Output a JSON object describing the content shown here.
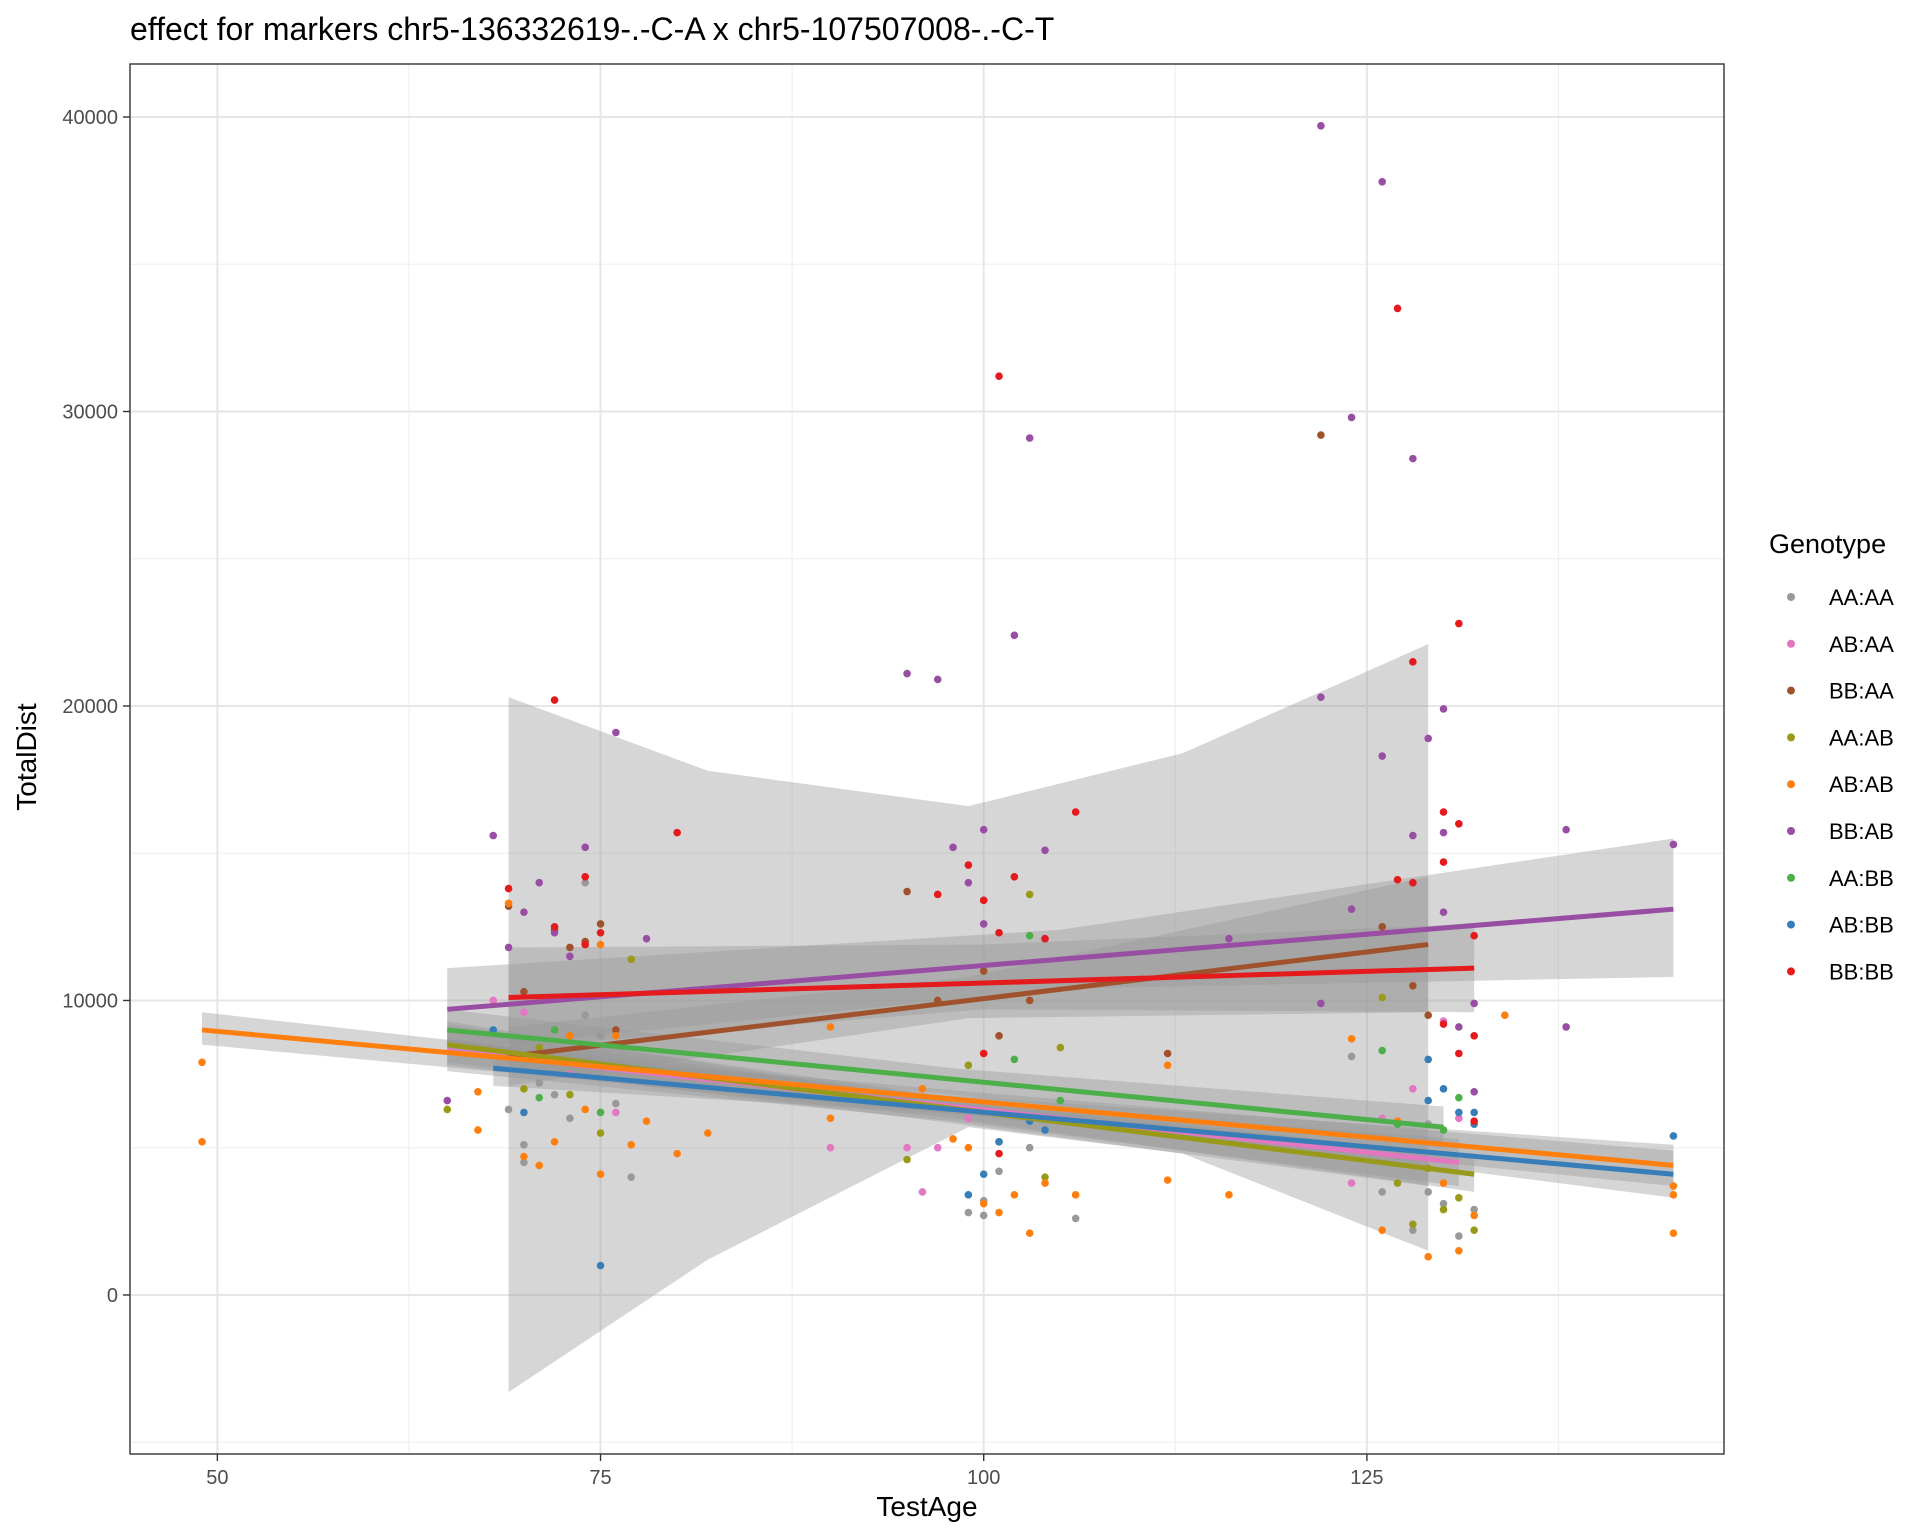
{
  "chart_data": {
    "type": "scatter",
    "title": "effect for markers chr5-136332619-.-C-A x chr5-107507008-.-C-T",
    "xlabel": "TestAge",
    "ylabel": "TotalDist",
    "xlim": [
      44.3,
      148.3
    ],
    "ylim": [
      -5400,
      41800
    ],
    "x_ticks": [
      50,
      75,
      100,
      125
    ],
    "y_ticks": [
      0,
      10000,
      20000,
      30000,
      40000
    ],
    "x_tick_labels": [
      "50",
      "75",
      "100",
      "125"
    ],
    "y_tick_labels": [
      "0",
      "10000",
      "20000",
      "30000",
      "40000"
    ],
    "grid": true,
    "legend": {
      "title": "Genotype",
      "position": "right"
    },
    "series": [
      {
        "name": "AA:AA",
        "color": "#999999",
        "points": [
          [
            69,
            6300
          ],
          [
            70,
            5100
          ],
          [
            70,
            4500
          ],
          [
            71,
            7200
          ],
          [
            72,
            6800
          ],
          [
            72,
            8200
          ],
          [
            73,
            6000
          ],
          [
            74,
            9500
          ],
          [
            74,
            14000
          ],
          [
            75,
            8800
          ],
          [
            75,
            7400
          ],
          [
            76,
            6500
          ],
          [
            77,
            4000
          ],
          [
            99,
            2800
          ],
          [
            100,
            2700
          ],
          [
            100,
            3200
          ],
          [
            101,
            4200
          ],
          [
            103,
            5000
          ],
          [
            106,
            2600
          ],
          [
            124,
            8100
          ],
          [
            126,
            3500
          ],
          [
            127,
            4700
          ],
          [
            128,
            2200
          ],
          [
            129,
            5800
          ],
          [
            129,
            3500
          ],
          [
            130,
            3100
          ],
          [
            131,
            2000
          ],
          [
            132,
            2900
          ]
        ],
        "fit": [
          [
            65,
            8600
          ],
          [
            129,
            4300
          ]
        ],
        "band": {
          "x": [
            65,
            97,
            129
          ],
          "lo": [
            7900,
            5900,
            3700
          ],
          "hi": [
            9300,
            6600,
            4900
          ]
        }
      },
      {
        "name": "AB:AA",
        "color": "#E377C2",
        "points": [
          [
            68,
            10000
          ],
          [
            70,
            9600
          ],
          [
            73,
            7500
          ],
          [
            76,
            6200
          ],
          [
            90,
            5000
          ],
          [
            95,
            5000
          ],
          [
            96,
            3500
          ],
          [
            97,
            5000
          ],
          [
            99,
            6000
          ],
          [
            124,
            3800
          ],
          [
            126,
            6000
          ],
          [
            128,
            7000
          ],
          [
            130,
            9300
          ],
          [
            131,
            6000
          ]
        ],
        "fit": [
          [
            65,
            8300
          ],
          [
            131,
            4500
          ]
        ],
        "band": {
          "x": [
            65,
            98,
            131
          ],
          "lo": [
            7600,
            5900,
            3700
          ],
          "hi": [
            9000,
            6600,
            5300
          ]
        }
      },
      {
        "name": "BB:AA",
        "color": "#A0522D",
        "points": [
          [
            69,
            13200
          ],
          [
            70,
            10300
          ],
          [
            72,
            12400
          ],
          [
            73,
            11800
          ],
          [
            74,
            12000
          ],
          [
            75,
            12600
          ],
          [
            76,
            9000
          ],
          [
            95,
            13700
          ],
          [
            97,
            10000
          ],
          [
            100,
            11000
          ],
          [
            101,
            8800
          ],
          [
            103,
            10000
          ],
          [
            112,
            8200
          ],
          [
            122,
            29200
          ],
          [
            126,
            12500
          ],
          [
            128,
            10500
          ],
          [
            129,
            9500
          ]
        ],
        "fit": [
          [
            69,
            8100
          ],
          [
            129,
            11900
          ]
        ],
        "band": {
          "x": [
            69,
            99,
            129
          ],
          "lo": [
            7100,
            9400,
            9600
          ],
          "hi": [
            9100,
            10800,
            14200
          ]
        }
      },
      {
        "name": "AA:AB",
        "color": "#9A9A1A",
        "points": [
          [
            65,
            6300
          ],
          [
            70,
            7000
          ],
          [
            71,
            8400
          ],
          [
            73,
            6800
          ],
          [
            75,
            5500
          ],
          [
            77,
            11400
          ],
          [
            95,
            4600
          ],
          [
            99,
            7800
          ],
          [
            101,
            5200
          ],
          [
            103,
            13600
          ],
          [
            105,
            8400
          ],
          [
            104,
            4000
          ],
          [
            126,
            10100
          ],
          [
            127,
            3800
          ],
          [
            128,
            2400
          ],
          [
            129,
            4300
          ],
          [
            130,
            2900
          ],
          [
            131,
            3300
          ],
          [
            132,
            2200
          ]
        ],
        "fit": [
          [
            65,
            8500
          ],
          [
            132,
            4100
          ]
        ],
        "band": {
          "x": [
            65,
            98,
            132
          ],
          "lo": [
            7800,
            6000,
            3500
          ],
          "hi": [
            9200,
            6700,
            4700
          ]
        }
      },
      {
        "name": "AB:AB",
        "color": "#FF7F0E",
        "points": [
          [
            49,
            7900
          ],
          [
            49,
            5200
          ],
          [
            67,
            5600
          ],
          [
            67,
            6900
          ],
          [
            69,
            13300
          ],
          [
            70,
            4700
          ],
          [
            71,
            4400
          ],
          [
            71,
            10000
          ],
          [
            72,
            5200
          ],
          [
            73,
            8800
          ],
          [
            74,
            6300
          ],
          [
            75,
            4100
          ],
          [
            75,
            11900
          ],
          [
            76,
            8800
          ],
          [
            77,
            5100
          ],
          [
            78,
            5900
          ],
          [
            80,
            4800
          ],
          [
            82,
            5500
          ],
          [
            90,
            9100
          ],
          [
            90,
            6000
          ],
          [
            96,
            7000
          ],
          [
            98,
            5300
          ],
          [
            99,
            5000
          ],
          [
            100,
            3100
          ],
          [
            101,
            2800
          ],
          [
            102,
            3400
          ],
          [
            103,
            2100
          ],
          [
            104,
            3800
          ],
          [
            106,
            3400
          ],
          [
            112,
            3900
          ],
          [
            112,
            7800
          ],
          [
            116,
            3400
          ],
          [
            124,
            8700
          ],
          [
            126,
            2200
          ],
          [
            127,
            5900
          ],
          [
            129,
            1300
          ],
          [
            130,
            3800
          ],
          [
            131,
            1500
          ],
          [
            132,
            2700
          ],
          [
            134,
            9500
          ],
          [
            145,
            3700
          ],
          [
            145,
            3400
          ],
          [
            145,
            2100
          ]
        ],
        "fit": [
          [
            49,
            9000
          ],
          [
            145,
            4400
          ]
        ],
        "band": {
          "x": [
            49,
            97,
            145
          ],
          "lo": [
            8500,
            6200,
            3700
          ],
          "hi": [
            9600,
            6800,
            5100
          ]
        }
      },
      {
        "name": "BB:AB",
        "color": "#984EA3",
        "points": [
          [
            65,
            6600
          ],
          [
            68,
            15600
          ],
          [
            69,
            11800
          ],
          [
            70,
            13000
          ],
          [
            71,
            14000
          ],
          [
            72,
            12300
          ],
          [
            73,
            11500
          ],
          [
            74,
            15200
          ],
          [
            76,
            19100
          ],
          [
            78,
            12100
          ],
          [
            95,
            21100
          ],
          [
            97,
            20900
          ],
          [
            98,
            15200
          ],
          [
            99,
            14000
          ],
          [
            100,
            15800
          ],
          [
            100,
            12600
          ],
          [
            102,
            22400
          ],
          [
            103,
            29100
          ],
          [
            104,
            12100
          ],
          [
            104,
            15100
          ],
          [
            116,
            12100
          ],
          [
            122,
            39700
          ],
          [
            122,
            20300
          ],
          [
            122,
            9900
          ],
          [
            124,
            29800
          ],
          [
            124,
            13100
          ],
          [
            126,
            37800
          ],
          [
            126,
            18300
          ],
          [
            128,
            28400
          ],
          [
            128,
            15600
          ],
          [
            129,
            18900
          ],
          [
            130,
            19900
          ],
          [
            130,
            15700
          ],
          [
            130,
            13000
          ],
          [
            131,
            9100
          ],
          [
            132,
            6900
          ],
          [
            132,
            9900
          ],
          [
            138,
            15800
          ],
          [
            138,
            9100
          ],
          [
            145,
            15300
          ]
        ],
        "fit": [
          [
            65,
            9700
          ],
          [
            145,
            13100
          ]
        ],
        "band": {
          "x": [
            65,
            105,
            145
          ],
          "lo": [
            8300,
            10400,
            10800
          ],
          "hi": [
            11100,
            12400,
            15500
          ]
        }
      },
      {
        "name": "AA:BB",
        "color": "#4DAF4A",
        "points": [
          [
            71,
            6700
          ],
          [
            72,
            9000
          ],
          [
            75,
            6200
          ],
          [
            102,
            8000
          ],
          [
            103,
            12200
          ],
          [
            105,
            6600
          ],
          [
            126,
            8300
          ],
          [
            127,
            5800
          ],
          [
            130,
            5600
          ],
          [
            131,
            6700
          ]
        ],
        "fit": [
          [
            65,
            9000
          ],
          [
            130,
            5700
          ]
        ],
        "band": {
          "x": [
            65,
            98,
            130
          ],
          "lo": [
            8300,
            6800,
            5000
          ],
          "hi": [
            9700,
            7700,
            6400
          ]
        }
      },
      {
        "name": "AB:BB",
        "color": "#377EB8",
        "points": [
          [
            68,
            9000
          ],
          [
            70,
            6200
          ],
          [
            75,
            1000
          ],
          [
            99,
            3400
          ],
          [
            100,
            4100
          ],
          [
            101,
            5200
          ],
          [
            103,
            5900
          ],
          [
            104,
            5600
          ],
          [
            129,
            8000
          ],
          [
            129,
            6600
          ],
          [
            130,
            7000
          ],
          [
            131,
            6200
          ],
          [
            132,
            5800
          ],
          [
            132,
            6200
          ],
          [
            145,
            5400
          ]
        ],
        "fit": [
          [
            68,
            7700
          ],
          [
            145,
            4100
          ]
        ],
        "band": {
          "x": [
            68,
            106,
            145
          ],
          "lo": [
            7100,
            5900,
            3300
          ],
          "hi": [
            8300,
            6600,
            4900
          ]
        }
      },
      {
        "name": "BB:BB",
        "color": "#E41A1C",
        "points": [
          [
            69,
            13800
          ],
          [
            72,
            20200
          ],
          [
            72,
            12500
          ],
          [
            74,
            14200
          ],
          [
            74,
            11900
          ],
          [
            75,
            12300
          ],
          [
            80,
            15700
          ],
          [
            97,
            13600
          ],
          [
            99,
            14600
          ],
          [
            100,
            13400
          ],
          [
            100,
            8200
          ],
          [
            101,
            31200
          ],
          [
            101,
            12300
          ],
          [
            102,
            14200
          ],
          [
            104,
            12100
          ],
          [
            106,
            16400
          ],
          [
            127,
            33500
          ],
          [
            127,
            14100
          ],
          [
            128,
            21500
          ],
          [
            128,
            14000
          ],
          [
            130,
            16400
          ],
          [
            130,
            14700
          ],
          [
            131,
            22800
          ],
          [
            131,
            16000
          ],
          [
            132,
            12200
          ],
          [
            130,
            9200
          ],
          [
            131,
            8200
          ],
          [
            132,
            5900
          ],
          [
            132,
            8800
          ],
          [
            101,
            4800
          ]
        ],
        "fit": [
          [
            69,
            10100
          ],
          [
            132,
            11100
          ]
        ],
        "band": {
          "x": [
            69,
            100,
            132
          ],
          "lo": [
            8400,
            9700,
            9600
          ],
          "hi": [
            11800,
            11900,
            12600
          ]
        }
      }
    ],
    "wide_band": {
      "name": "BB:AA",
      "x": [
        69,
        82,
        99,
        113,
        129
      ],
      "lo": [
        -3300,
        1200,
        5700,
        4800,
        1500
      ],
      "hi": [
        20300,
        17800,
        16600,
        18400,
        22100
      ]
    }
  }
}
